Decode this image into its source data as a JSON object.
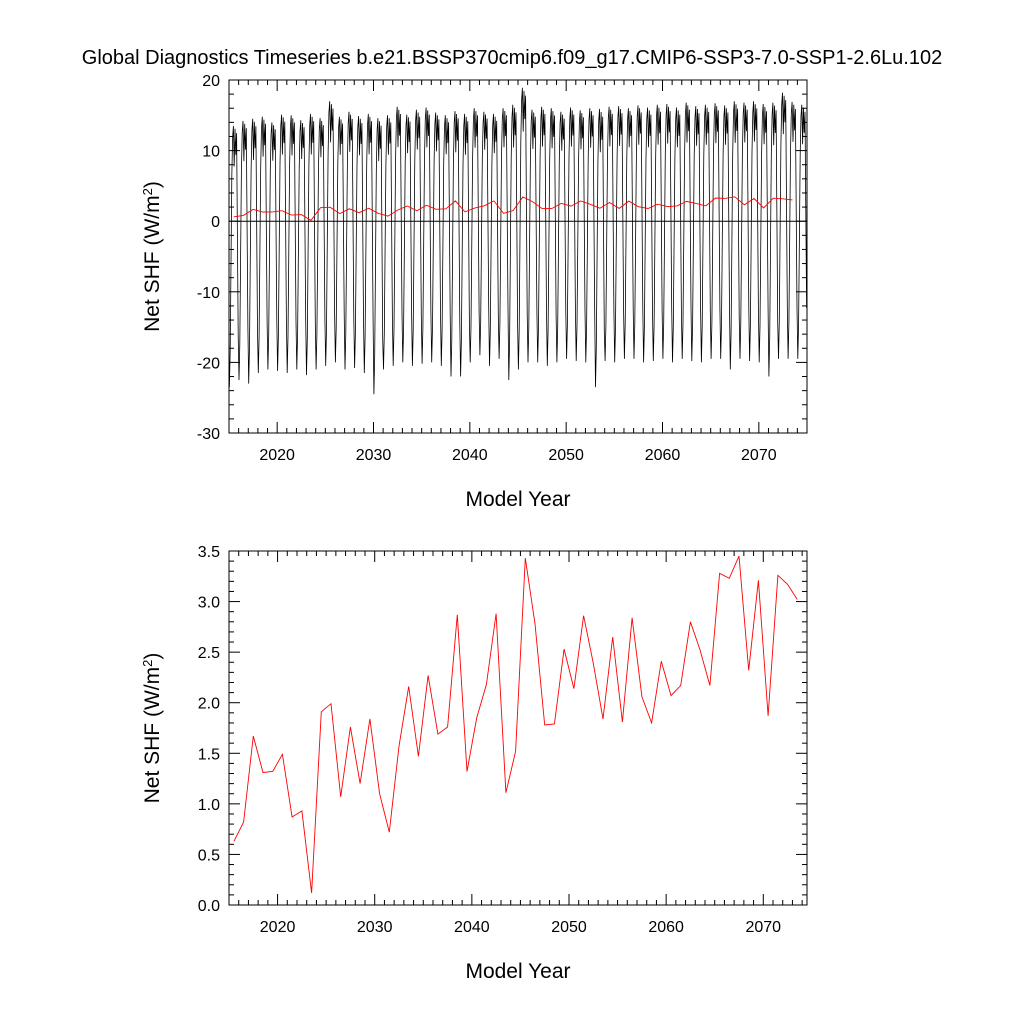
{
  "title": "Global Diagnostics Timeseries b.e21.BSSP370cmip6.f09_g17.CMIP6-SSP3-7.0-SSP1-2.6Lu.102",
  "chart_data": [
    {
      "type": "line",
      "panel": "top",
      "xlabel": "Model Year",
      "ylabel_main": "Net SHF (W/m",
      "ylabel_sup": "2",
      "ylabel_close": ")",
      "xlim": [
        2015,
        2075
      ],
      "ylim": [
        -30,
        20
      ],
      "xticks": [
        2020,
        2030,
        2040,
        2050,
        2060,
        2070
      ],
      "yticks": [
        -30,
        -20,
        -10,
        0,
        10,
        20
      ],
      "zero_line": true,
      "monthly_series": {
        "color": "#000000",
        "start_year": 2015,
        "annual_peak": [
          13.5,
          14.2,
          14.5,
          14.8,
          14.0,
          15.1,
          15.0,
          14.3,
          15.2,
          14.6,
          17.0,
          14.8,
          15.5,
          14.9,
          15.2,
          14.6,
          15.0,
          16.2,
          15.1,
          15.8,
          16.1,
          15.4,
          15.0,
          15.6,
          15.2,
          16.0,
          15.5,
          15.2,
          16.0,
          16.5,
          18.9,
          15.8,
          16.2,
          16.0,
          15.5,
          16.1,
          15.7,
          16.0,
          15.9,
          16.2,
          16.3,
          16.0,
          16.4,
          16.1,
          16.5,
          16.6,
          16.1,
          16.8,
          16.3,
          16.5,
          16.7,
          16.4,
          17.0,
          16.8,
          17.0,
          16.6,
          16.8,
          18.2,
          16.9,
          16.5
        ],
        "annual_trough": [
          -23.5,
          -22.5,
          -23.0,
          -21.5,
          -21.0,
          -21.2,
          -21.5,
          -21.0,
          -21.8,
          -21.0,
          -20.5,
          -20.0,
          -21.0,
          -20.8,
          -21.5,
          -24.5,
          -21.0,
          -20.5,
          -20.0,
          -20.5,
          -20.2,
          -20.0,
          -20.5,
          -22.0,
          -22.0,
          -20.0,
          -19.0,
          -20.5,
          -19.5,
          -22.5,
          -21.0,
          -20.0,
          -20.0,
          -20.5,
          -20.0,
          -19.5,
          -19.8,
          -20.0,
          -23.5,
          -19.8,
          -20.0,
          -19.5,
          -19.5,
          -20.0,
          -19.8,
          -19.5,
          -20.0,
          -19.5,
          -19.8,
          -20.0,
          -19.5,
          -19.5,
          -21.0,
          -19.5,
          -19.8,
          -20.0,
          -22.0,
          -19.5,
          -19.5,
          -19.5
        ]
      },
      "annual_series": {
        "color": "#ff0000",
        "x": [
          2015.5,
          2016.5,
          2017.5,
          2018.5,
          2019.5,
          2020.5,
          2021.5,
          2022.5,
          2023.5,
          2024.5,
          2025.5,
          2026.5,
          2027.5,
          2028.5,
          2029.5,
          2030.5,
          2031.5,
          2032.5,
          2033.5,
          2034.5,
          2035.5,
          2036.5,
          2037.5,
          2038.5,
          2039.5,
          2040.5,
          2041.5,
          2042.5,
          2043.5,
          2044.5,
          2045.5,
          2046.5,
          2047.5,
          2048.5,
          2049.5,
          2050.5,
          2051.5,
          2052.5,
          2053.5,
          2054.5,
          2055.5,
          2056.5,
          2057.5,
          2058.5,
          2059.5,
          2060.5,
          2061.5,
          2062.5,
          2063.5,
          2064.5,
          2065.5,
          2066.5,
          2067.5,
          2068.5,
          2069.5,
          2070.5,
          2071.5,
          2072.5,
          2073.5
        ],
        "y": [
          0.63,
          0.82,
          1.67,
          1.31,
          1.32,
          1.49,
          0.87,
          0.93,
          0.12,
          1.91,
          1.99,
          1.07,
          1.76,
          1.2,
          1.84,
          1.1,
          0.72,
          1.57,
          2.16,
          1.47,
          2.27,
          1.69,
          1.76,
          2.87,
          1.32,
          1.85,
          2.18,
          2.88,
          1.11,
          1.52,
          3.43,
          2.78,
          1.78,
          1.79,
          2.53,
          2.14,
          2.86,
          2.39,
          1.84,
          2.65,
          1.81,
          2.84,
          2.06,
          1.8,
          2.41,
          2.07,
          2.17,
          2.8,
          2.52,
          2.17,
          3.28,
          3.23,
          3.45,
          2.32,
          3.21,
          1.87,
          3.26,
          3.17,
          3.02
        ]
      }
    },
    {
      "type": "line",
      "panel": "bottom",
      "xlabel": "Model Year",
      "ylabel_main": "Net SHF (W/m",
      "ylabel_sup": "2",
      "ylabel_close": ")",
      "xlim": [
        2015,
        2074.5
      ],
      "ylim": [
        0.0,
        3.5
      ],
      "xticks": [
        2020,
        2030,
        2040,
        2050,
        2060,
        2070
      ],
      "yticks": [
        0.0,
        0.5,
        1.0,
        1.5,
        2.0,
        2.5,
        3.0,
        3.5
      ],
      "ytick_labels": [
        "0.0",
        "0.5",
        "1.0",
        "1.5",
        "2.0",
        "2.5",
        "3.0",
        "3.5"
      ]
    }
  ]
}
